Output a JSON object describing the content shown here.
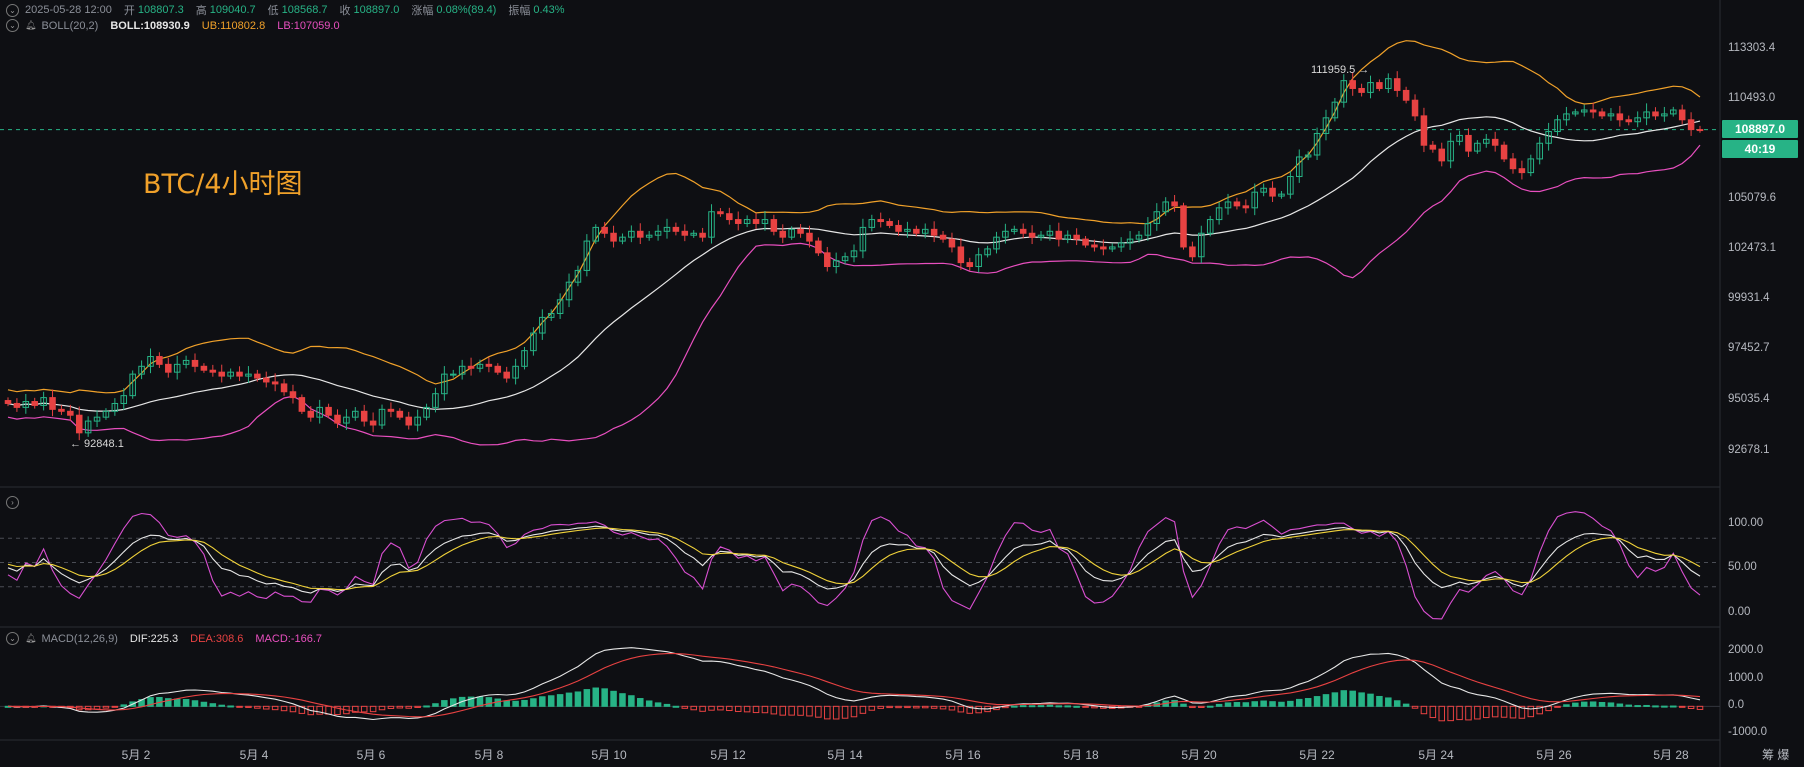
{
  "header": {
    "datetime": "2025-05-28 12:00",
    "open_label": "开",
    "open": "108807.3",
    "high_label": "高",
    "high": "109040.7",
    "low_label": "低",
    "low": "108568.7",
    "close_label": "收",
    "close": "108897.0",
    "change_label": "涨幅",
    "change": "0.08%(89.4)",
    "amp_label": "振幅",
    "amp": "0.43%"
  },
  "boll_legend": {
    "name": "BOLL(20,2)",
    "boll": "BOLL:108930.9",
    "ub": "UB:110802.8",
    "lb": "LB:107059.0"
  },
  "macd_legend": {
    "name": "MACD(12,26,9)",
    "dif": "DIF:225.3",
    "dea": "DEA:308.6",
    "macd": "MACD:-166.7"
  },
  "watermark": "BTC/4小时图",
  "price_axis": [
    "113303.4",
    "110493.0",
    "105079.6",
    "102473.1",
    "99931.4",
    "97452.7",
    "95035.4",
    "92678.1"
  ],
  "current_price": "108897.0",
  "countdown": "40:19",
  "high_marker": "111959.5 →",
  "low_marker": "← 92848.1",
  "kdj_axis": [
    "100.00",
    "50.00",
    "0.00"
  ],
  "macd_axis": [
    "2000.0",
    "1000.0",
    "0.0",
    "-1000.0"
  ],
  "date_axis": [
    "5月 2",
    "5月 4",
    "5月 6",
    "5月 8",
    "5月 10",
    "5月 12",
    "5月 14",
    "5月 16",
    "5月 18",
    "5月 20",
    "5月 22",
    "5月 24",
    "5月 26",
    "5月 28"
  ],
  "right_corner": "筹 爆",
  "chart_data": {
    "type": "candlestick",
    "timeframe": "4h",
    "x_range": [
      "2025-05-01",
      "2025-05-28 12:00"
    ],
    "price_ylim": [
      91500,
      114500
    ],
    "candles": {
      "x_start": "2025-05-01 04:00",
      "interval_hours": 4,
      "close": [
        94900,
        94700,
        95000,
        94800,
        95200,
        94600,
        94500,
        94300,
        93400,
        94000,
        94200,
        94500,
        94900,
        95300,
        96400,
        96800,
        97300,
        96900,
        96500,
        96900,
        97100,
        96800,
        96600,
        96500,
        96300,
        96500,
        96300,
        96400,
        96200,
        96000,
        95900,
        95500,
        95200,
        94500,
        94200,
        94700,
        94300,
        93900,
        94200,
        94500,
        94000,
        93800,
        94600,
        94500,
        94200,
        93800,
        94200,
        94700,
        95400,
        96400,
        96400,
        96800,
        96700,
        96900,
        96800,
        96500,
        96200,
        96800,
        97600,
        98500,
        99300,
        99500,
        100200,
        101100,
        101700,
        103200,
        103900,
        103600,
        103200,
        103400,
        103700,
        103400,
        103500,
        103700,
        103900,
        103700,
        103500,
        103600,
        103400,
        104700,
        104600,
        104300,
        104100,
        104300,
        104100,
        104300,
        103700,
        103400,
        103800,
        103600,
        103200,
        102600,
        101900,
        102200,
        102400,
        102700,
        103900,
        104300,
        104200,
        104000,
        103700,
        103800,
        103600,
        103800,
        103500,
        103300,
        102900,
        102100,
        101900,
        102500,
        102800,
        103400,
        103700,
        103800,
        103600,
        103400,
        103500,
        103700,
        103300,
        103500,
        103300,
        103000,
        102900,
        102800,
        102900,
        103100,
        103300,
        103500,
        104100,
        104700,
        105200,
        105000,
        102900,
        102400,
        103600,
        104300,
        104900,
        105200,
        105000,
        104900,
        105700,
        105900,
        105500,
        105600,
        106500,
        107500,
        107600,
        108700,
        109500,
        110300,
        111400,
        111000,
        110800,
        111300,
        111000,
        111500,
        110900,
        110400,
        109600,
        108100,
        107900,
        107300,
        108300,
        108600,
        107800,
        108200,
        108400,
        108100,
        107400,
        106900,
        106700,
        107400,
        108200,
        108800,
        109400,
        109700,
        109800,
        109900,
        109800,
        109600,
        109700,
        109400,
        109300,
        109500,
        109800,
        109600,
        109700,
        109900,
        109400,
        108900,
        108897
      ]
    },
    "boll": {
      "period": 20,
      "mult": 2
    },
    "kdj_range": [
      0,
      100
    ],
    "kdj_levels": [
      80,
      50,
      20
    ],
    "macd_range": [
      -1000,
      2000
    ],
    "macd_params": [
      12,
      26,
      9
    ],
    "colors": {
      "up": "#27b386",
      "down": "#e84242",
      "mid": "#e6e6e6",
      "ub": "#f0a12a",
      "lb": "#e84fbf",
      "k": "#e6e6e6",
      "d": "#f0d23a",
      "j": "#d94fd1",
      "dif": "#e6e6e6",
      "dea": "#e84242"
    }
  }
}
